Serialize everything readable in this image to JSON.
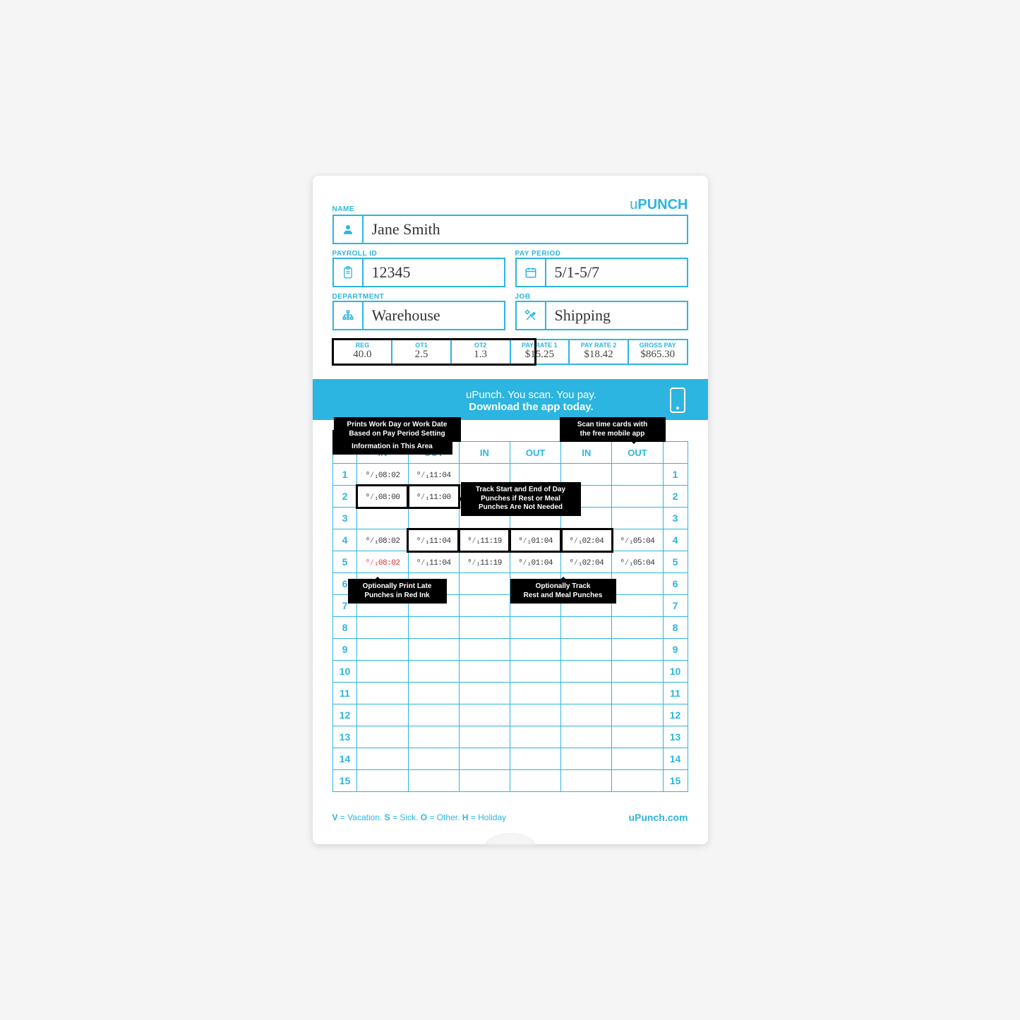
{
  "brand": "uPUNCH",
  "website": "uPunch.com",
  "colors": {
    "primary": "#2cb5e0",
    "card_bg": "#ffffff",
    "callout_bg": "#000000",
    "red": "#d9302c"
  },
  "fields": {
    "name": {
      "label": "NAME",
      "value": "Jane Smith"
    },
    "payroll_id": {
      "label": "PAYROLL ID",
      "value": "12345"
    },
    "pay_period": {
      "label": "PAY PERIOD",
      "value": "5/1-5/7"
    },
    "department": {
      "label": "DEPARTMENT",
      "value": "Warehouse"
    },
    "job": {
      "label": "JOB",
      "value": "Shipping"
    }
  },
  "pay_row": [
    {
      "hdr": "REG",
      "val": "40.0"
    },
    {
      "hdr": "OT1",
      "val": "2.5"
    },
    {
      "hdr": "OT2",
      "val": "1.3"
    },
    {
      "hdr": "PAY RATE 1",
      "val": "$15.25"
    },
    {
      "hdr": "PAY RATE 2",
      "val": "$18.42"
    },
    {
      "hdr": "GROSS PAY",
      "val": "$865.30"
    }
  ],
  "banner": {
    "line1": "uPunch. You scan. You pay.",
    "line2": "Download the app today."
  },
  "callouts": {
    "payrate": "Optionally Write in Pay Rate\nInformation in This Area",
    "workday": "Prints Work Day or Work Date\nBased on Pay Period Setting",
    "scan": "Scan time cards with\nthe free mobile app",
    "track_day": "Track Start and End of Day\nPunches if Rest or Meal\nPunches Are Not Needed",
    "late_red": "Optionally Print Late\nPunches in Red Ink",
    "rest_meal": "Optionally Track\nRest and Meal Punches"
  },
  "columns": [
    "IN",
    "OUT",
    "IN",
    "OUT",
    "IN",
    "OUT"
  ],
  "row_count": 15,
  "punches": {
    "1": [
      "⁰⁄₁08:02",
      "⁰⁄₁11:04",
      "",
      "",
      "",
      ""
    ],
    "2": [
      "⁰⁄₁08:00",
      "⁰⁄₁11:00",
      "",
      "",
      "",
      ""
    ],
    "4": [
      "⁰⁄₁08:02",
      "⁰⁄₁11:04",
      "⁰⁄₁11:19",
      "⁰⁄₁01:04",
      "⁰⁄₁02:04",
      "⁰⁄₁05:04"
    ],
    "5": [
      "⁰⁄₁08:02",
      "⁰⁄₁11:04",
      "⁰⁄₁11:19",
      "⁰⁄₁01:04",
      "⁰⁄₁02:04",
      "⁰⁄₁05:04"
    ]
  },
  "red_cells": [
    [
      "5",
      "0"
    ]
  ],
  "highlight_row2": [
    0,
    1
  ],
  "highlight_row4": [
    1,
    2,
    3,
    4
  ],
  "legend": [
    {
      "k": "V",
      "v": "Vacation"
    },
    {
      "k": "S",
      "v": "Sick"
    },
    {
      "k": "O",
      "v": "Other"
    },
    {
      "k": "H",
      "v": "Holiday"
    }
  ]
}
